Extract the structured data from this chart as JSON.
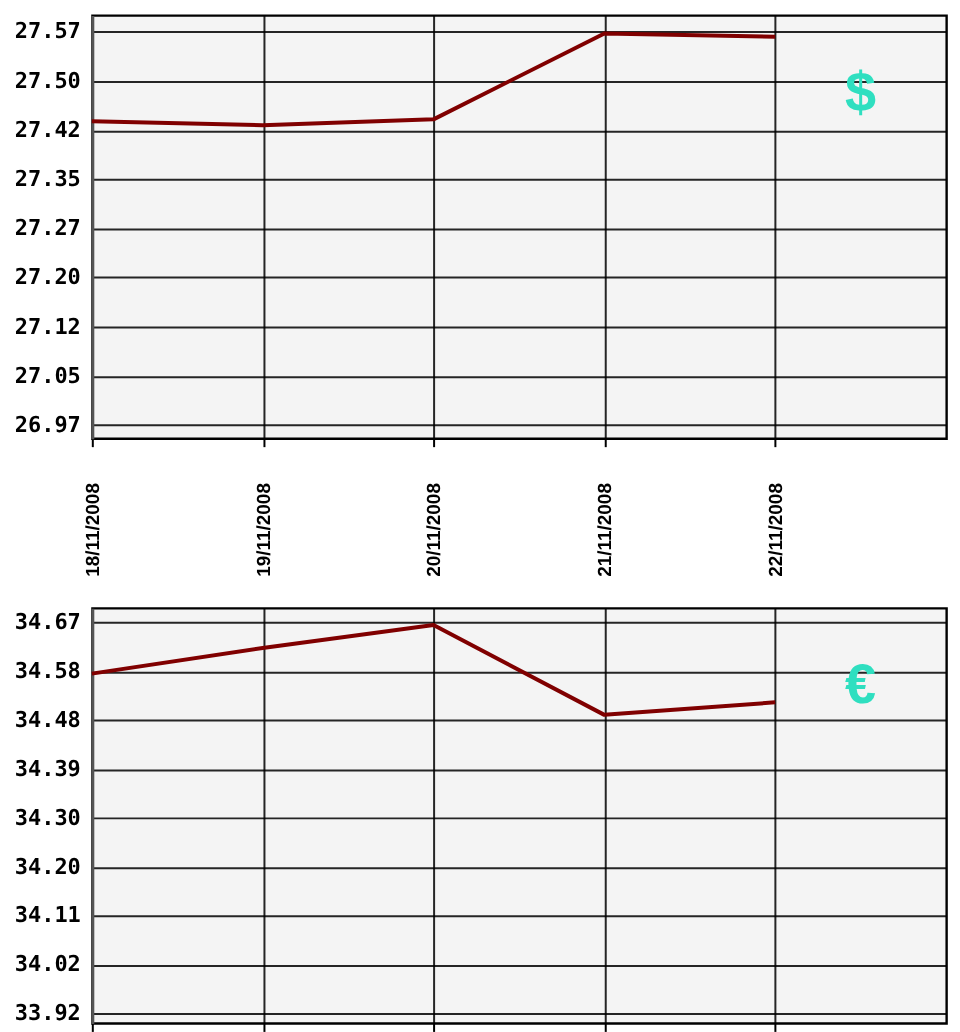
{
  "chart_data": [
    {
      "type": "line",
      "x": [
        "2008-11-18",
        "2008-11-19",
        "2008-11-20",
        "2008-11-21",
        "2008-11-22"
      ],
      "xlim": [
        "2008-11-18",
        "2008-11-23"
      ],
      "xticks": [
        {
          "value": "2008-11-18",
          "label": "18/11/2008"
        },
        {
          "value": "2008-11-19",
          "label": "19/11/2008"
        },
        {
          "value": "2008-11-20",
          "label": "20/11/2008"
        },
        {
          "value": "2008-11-21",
          "label": "21/11/2008"
        },
        {
          "value": "2008-11-22",
          "label": "22/11/2008"
        }
      ],
      "series": [
        {
          "name": "$",
          "color": "#800000",
          "values": [
            27.433,
            27.427,
            27.436,
            27.567,
            27.562
          ]
        }
      ],
      "ylim": [
        26.95,
        27.595
      ],
      "yticks": [
        26.97,
        {
          "value": 27.045,
          "label": "27.05"
        },
        27.12,
        {
          "value": 27.195,
          "label": "27.20"
        },
        27.27,
        {
          "value": 27.345,
          "label": "27.35"
        },
        27.42,
        {
          "value": 27.495,
          "label": "27.50"
        },
        27.57
      ],
      "grid": true,
      "marker": "none",
      "line_style": "solid"
    },
    {
      "type": "line",
      "x": [
        "2008-11-18",
        "2008-11-19",
        "2008-11-20",
        "2008-11-21",
        "2008-11-22"
      ],
      "xlim": [
        "2008-11-18",
        "2008-11-23"
      ],
      "xticks": [
        "2008-11-18",
        "2008-11-19",
        "2008-11-20",
        "2008-11-21",
        "2008-11-22"
      ],
      "series": [
        {
          "name": "€",
          "color": "#800000",
          "values": [
            34.574,
            34.623,
            34.667,
            34.495,
            34.519
          ]
        }
      ],
      "ylim": [
        33.905,
        34.7
      ],
      "yticks": [
        {
          "value": 33.924,
          "label": "33.92"
        },
        {
          "value": 34.0175,
          "label": "34.02"
        },
        {
          "value": 34.111,
          "label": "34.11"
        },
        {
          "value": 34.2045,
          "label": "34.20"
        },
        {
          "value": 34.298,
          "label": "34.30"
        },
        {
          "value": 34.3915,
          "label": "34.39"
        },
        {
          "value": 34.485,
          "label": "34.48"
        },
        {
          "value": 34.5785,
          "label": "34.58"
        },
        {
          "value": 34.672,
          "label": "34.67"
        }
      ],
      "grid": true,
      "tick_labels": "y",
      "marker": "none",
      "line_style": "solid"
    }
  ]
}
